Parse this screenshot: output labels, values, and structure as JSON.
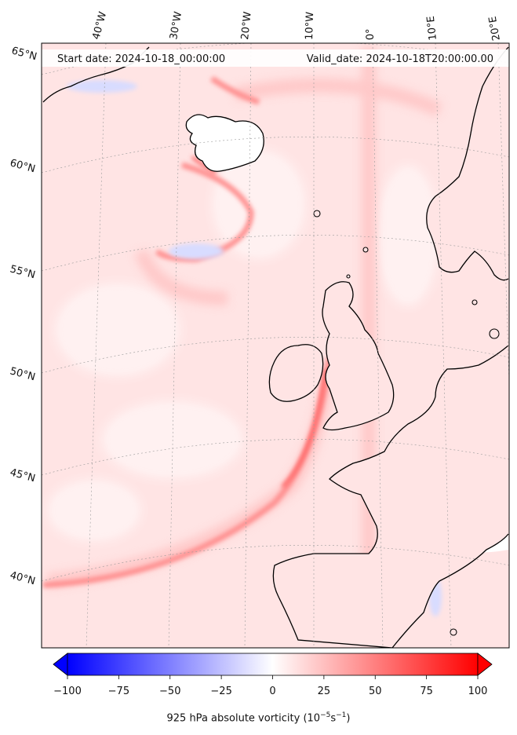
{
  "header": {
    "start_date": "Start date: 2024-10-18_00:00:00",
    "valid_date": "Valid_date: 2024-10-18T20:00:00.00"
  },
  "longitude_labels": [
    "40°W",
    "30°W",
    "20°W",
    "10°W",
    "0°",
    "10°E",
    "20°E"
  ],
  "latitude_labels": [
    "65°N",
    "60°N",
    "55°N",
    "50°N",
    "45°N",
    "40°N"
  ],
  "colorbar": {
    "title_prefix": "925 hPa absolute vorticity (10",
    "title_exp1": "−5",
    "title_mid": "s",
    "title_exp2": "−1",
    "title_suffix": ")",
    "min": -100,
    "max": 100,
    "ticks": [
      "−100",
      "−75",
      "−50",
      "−25",
      "0",
      "25",
      "50",
      "75",
      "100"
    ],
    "low_color": "#0000ff",
    "high_color": "#ff0000",
    "extend": "both"
  },
  "colors": {
    "background_field": "#ffe3e3",
    "coastline": "#000000"
  }
}
